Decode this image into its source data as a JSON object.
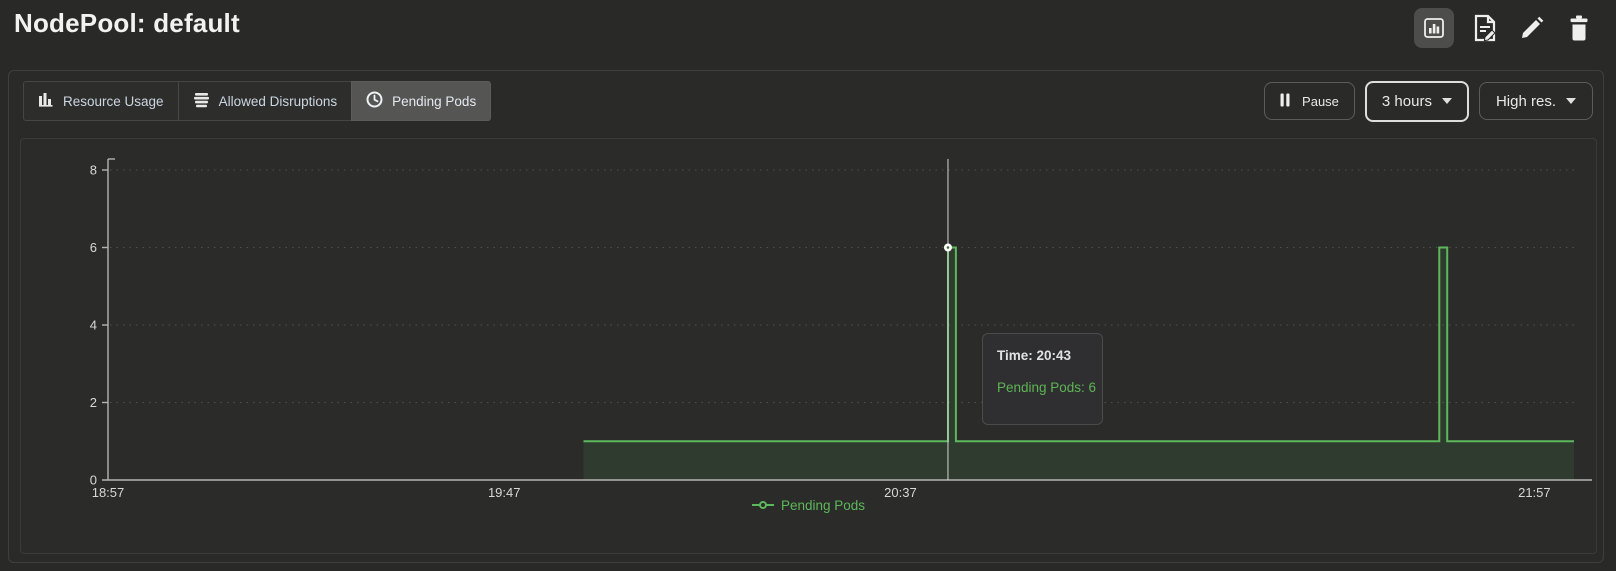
{
  "header": {
    "title": "NodePool: default",
    "actions": [
      {
        "name": "chart-view",
        "icon": "bar-chart-icon",
        "active": true
      },
      {
        "name": "edit-document",
        "icon": "document-edit-icon",
        "active": false
      },
      {
        "name": "edit",
        "icon": "pencil-icon",
        "active": false
      },
      {
        "name": "delete",
        "icon": "trash-icon",
        "active": false
      }
    ]
  },
  "toolbar": {
    "tabs": [
      {
        "label": "Resource Usage",
        "icon": "bar-chart-icon",
        "selected": false
      },
      {
        "label": "Allowed Disruptions",
        "icon": "layers-icon",
        "selected": false
      },
      {
        "label": "Pending Pods",
        "icon": "clock-icon",
        "selected": true
      }
    ],
    "pause_label": "Pause",
    "range_label": "3 hours",
    "resolution_label": "High res."
  },
  "chart_data": {
    "type": "line",
    "title": "",
    "xlabel": "",
    "ylabel": "",
    "ylim": [
      0,
      8
    ],
    "y_ticks": [
      0,
      2,
      4,
      6,
      8
    ],
    "x_ticks": [
      "18:57",
      "19:47",
      "20:37",
      "21:57"
    ],
    "x_range": [
      "18:57",
      "22:02"
    ],
    "grid": "horizontal-dashed",
    "legend_position": "bottom-center",
    "series": [
      {
        "name": "Pending Pods",
        "color": "#5cb85c",
        "step": true,
        "points": [
          [
            "19:57",
            1
          ],
          [
            "20:43",
            6
          ],
          [
            "20:44",
            1
          ],
          [
            "21:45",
            6
          ],
          [
            "21:46",
            1
          ],
          [
            "22:02",
            1
          ]
        ]
      }
    ],
    "crosshair": {
      "time": "20:43",
      "value": 6
    },
    "tooltip": {
      "time_label": "Time: 20:43",
      "value_label": "Pending Pods: 6"
    }
  },
  "colors": {
    "background": "#292927",
    "panel_border": "#3f3f3d",
    "series_green": "#5cb85c",
    "axis_gray": "#b4b4b2",
    "selected_tab_bg": "#555553"
  }
}
